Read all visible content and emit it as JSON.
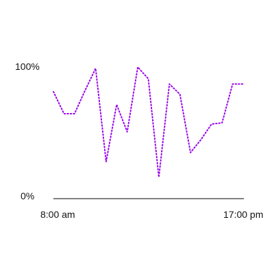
{
  "chart_data": {
    "type": "line",
    "x": [
      "8:00",
      "8:30",
      "9:00",
      "9:30",
      "10:00",
      "10:30",
      "11:00",
      "11:30",
      "12:00",
      "12:30",
      "13:00",
      "13:30",
      "14:00",
      "14:30",
      "15:00",
      "15:30",
      "16:00",
      "16:30",
      "17:00"
    ],
    "series": [
      {
        "values": [
          81,
          64,
          64,
          82,
          99,
          27,
          71,
          50,
          100,
          91,
          15,
          87,
          79,
          34,
          44,
          56,
          57,
          87,
          87
        ],
        "color": "#9900ee"
      }
    ],
    "x_tick_labels": [
      "8:00 am",
      "17:00 pm"
    ],
    "y_tick_labels": [
      "0%",
      "100%"
    ],
    "ylim": [
      0,
      100
    ],
    "grid": false,
    "legend": "none",
    "line_style": "dotted",
    "axis_color": "#000000"
  }
}
